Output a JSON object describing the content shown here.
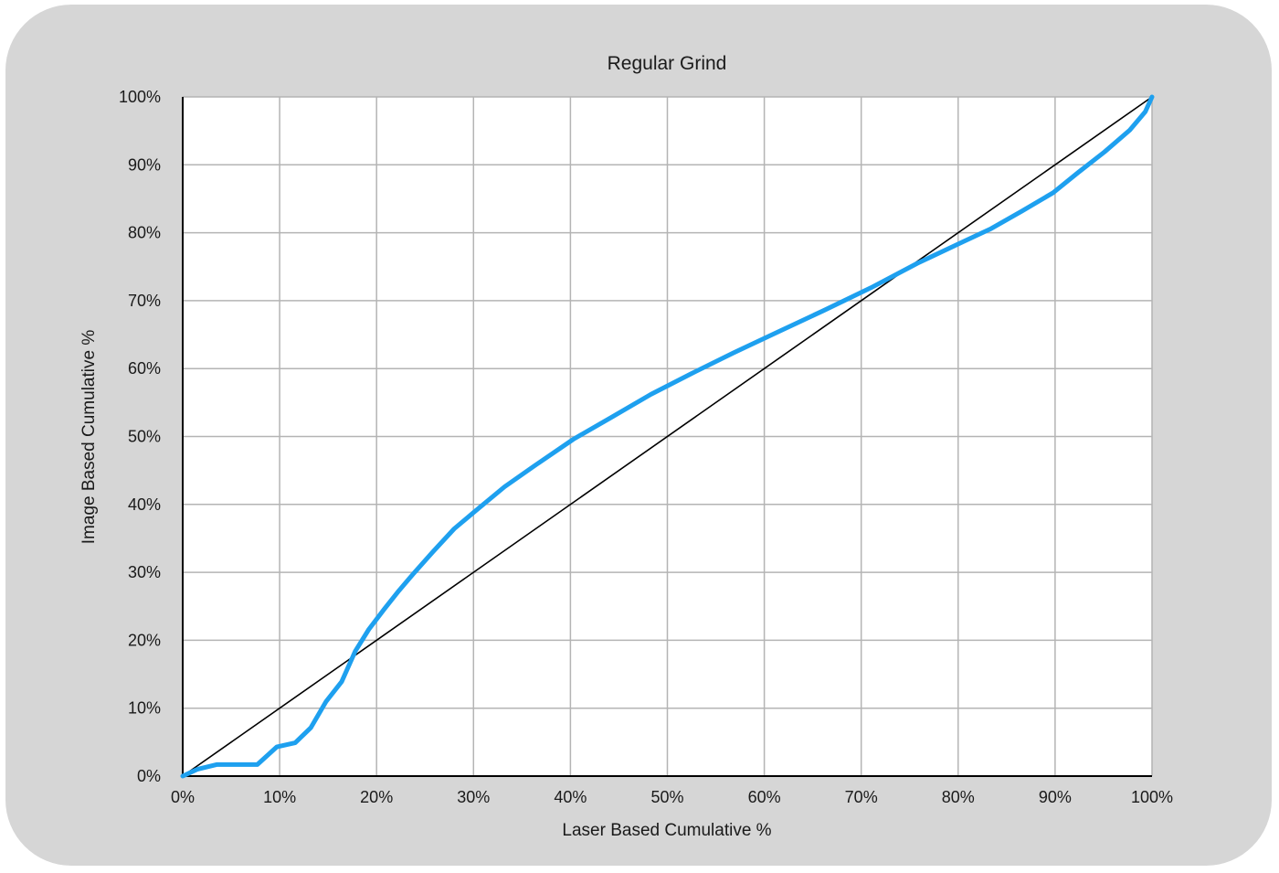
{
  "chart_data": {
    "type": "line",
    "title": "Regular Grind",
    "xlabel": "Laser Based Cumulative %",
    "ylabel": "Image Based Cumulative %",
    "xlim": [
      0,
      100
    ],
    "ylim": [
      0,
      100
    ],
    "x_ticks": [
      0,
      10,
      20,
      30,
      40,
      50,
      60,
      70,
      80,
      90,
      100
    ],
    "y_ticks": [
      0,
      10,
      20,
      30,
      40,
      50,
      60,
      70,
      80,
      90,
      100
    ],
    "x_tick_labels": [
      "0%",
      "10%",
      "20%",
      "30%",
      "40%",
      "50%",
      "60%",
      "70%",
      "80%",
      "90%",
      "100%"
    ],
    "y_tick_labels": [
      "0%",
      "10%",
      "20%",
      "30%",
      "40%",
      "50%",
      "60%",
      "70%",
      "80%",
      "90%",
      "100%"
    ],
    "grid": true,
    "legend": "none",
    "series": [
      {
        "color": "#1ea0ef",
        "x": [
          0,
          1.5,
          3.5,
          5.5,
          7.7,
          9.7,
          11.6,
          13.2,
          14.8,
          16.4,
          17.8,
          19.2,
          20.8,
          22.3,
          23.8,
          25.8,
          28,
          30,
          33.2,
          36.5,
          40.3,
          44.2,
          48.3,
          52.4,
          56.8,
          61.4,
          66.2,
          71,
          75.8,
          80.4,
          83.4,
          86.6,
          89.8,
          92.4,
          95.1,
          97.7,
          99.3,
          100
        ],
        "y": [
          0,
          1,
          1.7,
          1.7,
          1.7,
          4.3,
          4.9,
          7.1,
          11,
          13.9,
          18.4,
          21.6,
          24.6,
          27.3,
          29.8,
          33,
          36.4,
          38.8,
          42.6,
          45.9,
          49.6,
          52.8,
          56.2,
          59.2,
          62.3,
          65.4,
          68.6,
          71.9,
          75.5,
          78.6,
          80.6,
          83.2,
          85.9,
          88.9,
          91.9,
          95.1,
          97.8,
          100
        ]
      },
      {
        "color": "#000000",
        "x": [
          0,
          100
        ],
        "y": [
          0,
          100
        ]
      }
    ]
  }
}
